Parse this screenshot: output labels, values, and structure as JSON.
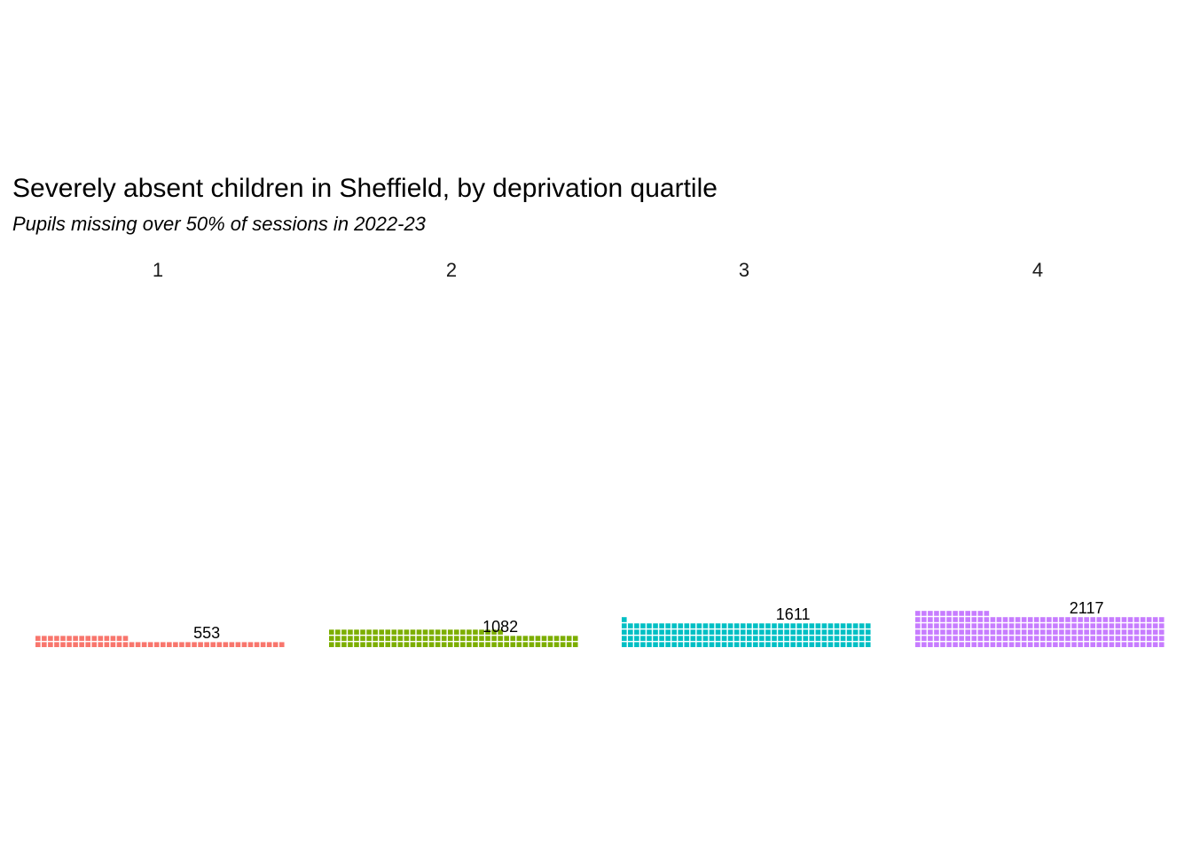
{
  "chart_data": {
    "type": "waffle",
    "title": "Severely absent children in Sheffield, by deprivation quartile",
    "subtitle": "Pupils missing over 50% of sessions in 2022-23",
    "categories": [
      "1",
      "2",
      "3",
      "4"
    ],
    "values": [
      553,
      1082,
      1611,
      2117
    ],
    "value_labels": [
      "553",
      "1082",
      "1611",
      "2117"
    ],
    "colors": [
      "#F8766D",
      "#7CAE00",
      "#00BFC4",
      "#C77CFF"
    ],
    "squares_per_row": 40,
    "grid": false,
    "legend": "none"
  }
}
